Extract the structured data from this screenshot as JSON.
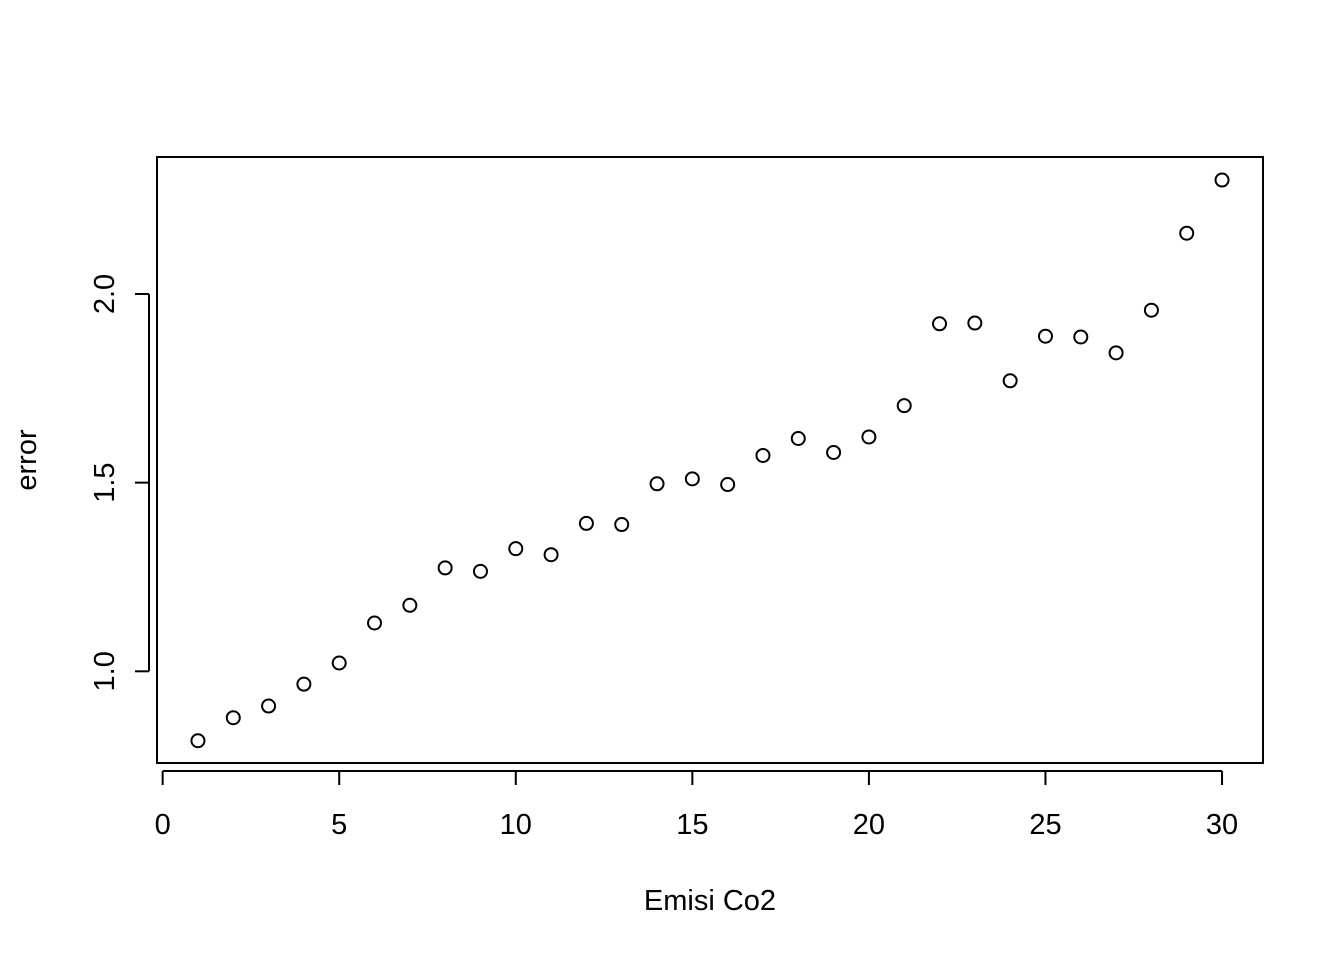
{
  "chart_data": {
    "type": "scatter",
    "title": "",
    "xlabel": "Emisi Co2",
    "ylabel": "error",
    "xlim": [
      -0.16,
      31.16
    ],
    "ylim": [
      0.757,
      2.363
    ],
    "xticks": [
      0,
      5,
      10,
      15,
      20,
      25,
      30
    ],
    "xtick_labels": [
      "0",
      "5",
      "10",
      "15",
      "20",
      "25",
      "30"
    ],
    "yticks": [
      1.0,
      1.5,
      2.0
    ],
    "ytick_labels": [
      "1.0",
      "1.5",
      "2.0"
    ],
    "grid": false,
    "legend": "none",
    "marker": "open-circle",
    "point_color": "#000000",
    "series": [
      {
        "x": [
          1,
          2,
          3,
          4,
          5,
          6,
          7,
          8,
          9,
          10,
          11,
          12,
          13,
          14,
          15,
          16,
          17,
          18,
          19,
          20,
          21,
          22,
          23,
          24,
          25,
          26,
          27,
          28,
          29,
          30
        ],
        "y": [
          0.816,
          0.877,
          0.908,
          0.966,
          1.022,
          1.128,
          1.175,
          1.274,
          1.265,
          1.325,
          1.309,
          1.392,
          1.389,
          1.497,
          1.51,
          1.495,
          1.572,
          1.617,
          1.58,
          1.621,
          1.704,
          1.921,
          1.923,
          1.77,
          1.888,
          1.886,
          1.844,
          1.957,
          2.161,
          2.302
        ]
      }
    ]
  }
}
